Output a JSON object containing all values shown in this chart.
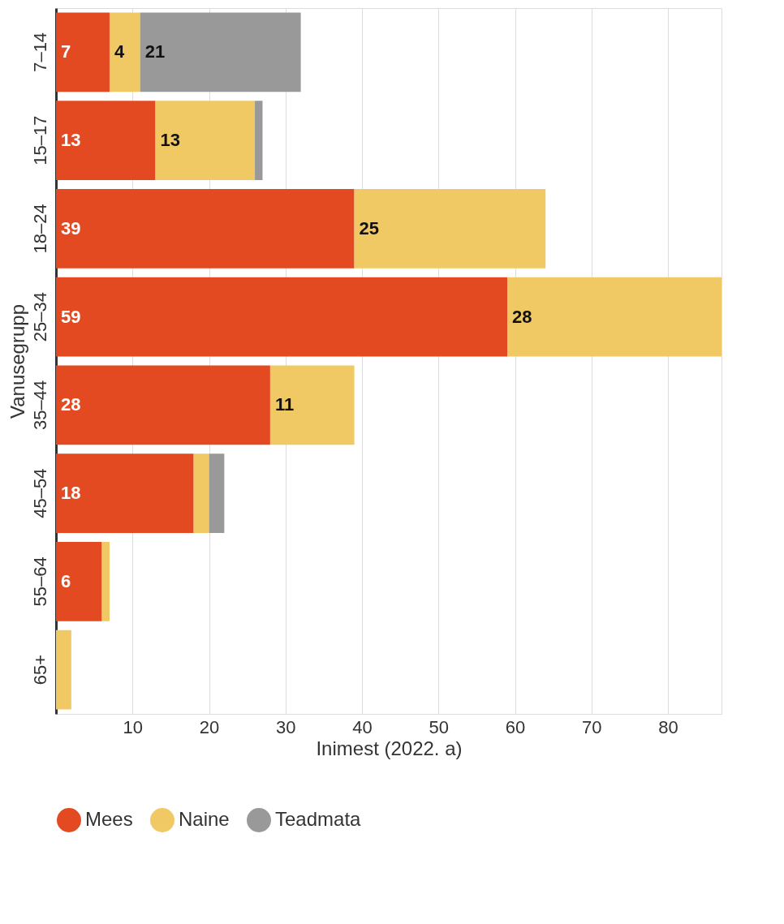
{
  "chart_data": {
    "type": "bar",
    "orientation": "horizontal",
    "stacked": true,
    "xlabel": "Inimest (2022. a)",
    "ylabel": "Vanusegrupp",
    "categories": [
      "7–14",
      "15–17",
      "18–24",
      "25–34",
      "35–44",
      "45–54",
      "55–64",
      "65+"
    ],
    "series": [
      {
        "name": "Mees",
        "color": "#e34a22",
        "values": [
          7,
          13,
          39,
          59,
          28,
          18,
          6,
          null
        ],
        "value_labels": [
          "7",
          "13",
          "39",
          "59",
          "28",
          "18",
          "6",
          null
        ]
      },
      {
        "name": "Naine",
        "color": "#f0c965",
        "values": [
          4,
          13,
          25,
          28,
          11,
          2,
          1,
          2
        ],
        "value_labels": [
          "4",
          "13",
          "25",
          "28",
          "11",
          null,
          null,
          null
        ]
      },
      {
        "name": "Teadmata",
        "color": "#999999",
        "values": [
          21,
          1,
          null,
          null,
          null,
          2,
          null,
          null
        ],
        "value_labels": [
          "21",
          null,
          null,
          null,
          null,
          null,
          null,
          null
        ]
      }
    ],
    "xlim": [
      0,
      87
    ],
    "xticks": [
      10,
      20,
      30,
      40,
      50,
      60,
      70,
      80
    ],
    "grid": "x",
    "legend": "bottom"
  }
}
